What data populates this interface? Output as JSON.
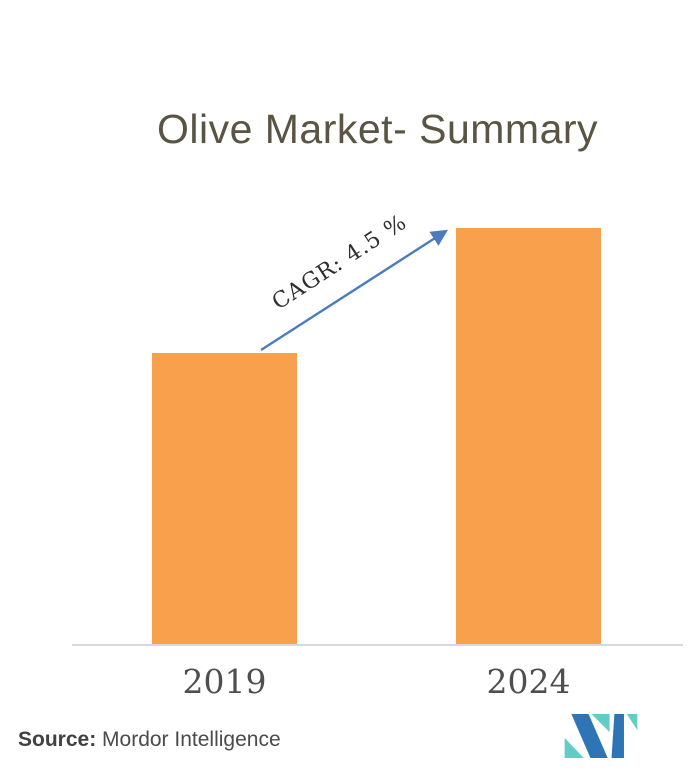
{
  "chart_data": {
    "type": "bar",
    "title": "Olive Market- Summary",
    "categories": [
      "2019",
      "2024"
    ],
    "values": [
      70,
      100
    ],
    "values_note": "No y-axis or data labels shown; values are relative bar heights with 2024 indexed to 100",
    "annotation": "CAGR: 4.5 %",
    "annotation_arrow": "diagonal arrow from top of 2019 bar to top of 2024 bar",
    "xlabel": "",
    "ylabel": "",
    "ylim": null,
    "grid": false,
    "legend": false,
    "bar_color": "#F9A04D"
  },
  "footer": {
    "source_label": "Source:",
    "source_value": "Mordor Intelligence"
  },
  "colors": {
    "bar_orange": "#F9A04D",
    "arrow_blue": "#4A7CBE",
    "title_text": "#5A5444",
    "tick_text": "#4F4F52",
    "annotation_text": "#2E2E2E",
    "axis_line": "#D9D9D9",
    "logo_blue": "#2E75B5",
    "logo_teal": "#62CDC5"
  }
}
